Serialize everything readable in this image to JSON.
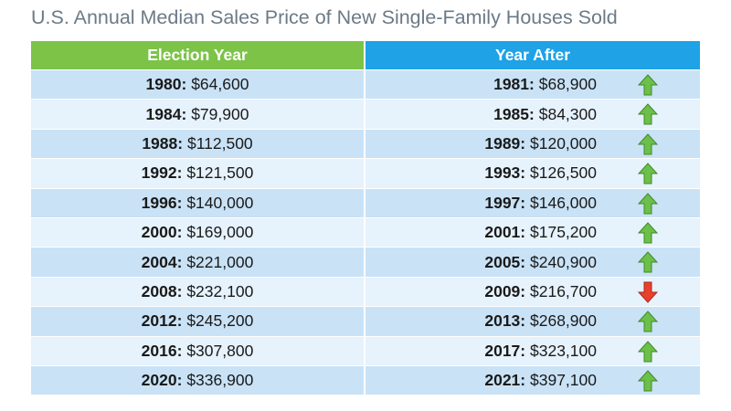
{
  "title": "U.S. Annual Median Sales Price of New Single-Family Houses Sold",
  "headers": {
    "left": "Election Year",
    "right": "Year After"
  },
  "colors": {
    "up": "#6cc04a",
    "down": "#e8412c",
    "header_left": "#7cc348",
    "header_right": "#1fa2e6"
  },
  "chart_data": {
    "type": "table",
    "title": "U.S. Annual Median Sales Price of New Single-Family Houses Sold",
    "columns": [
      "Election Year",
      "Year After"
    ],
    "rows": [
      {
        "election_year": "1980",
        "election_price": "$64,600",
        "after_year": "1981",
        "after_price": "$68,900",
        "direction": "up"
      },
      {
        "election_year": "1984",
        "election_price": "$79,900",
        "after_year": "1985",
        "after_price": "$84,300",
        "direction": "up"
      },
      {
        "election_year": "1988",
        "election_price": "$112,500",
        "after_year": "1989",
        "after_price": "$120,000",
        "direction": "up"
      },
      {
        "election_year": "1992",
        "election_price": "$121,500",
        "after_year": "1993",
        "after_price": "$126,500",
        "direction": "up"
      },
      {
        "election_year": "1996",
        "election_price": "$140,000",
        "after_year": "1997",
        "after_price": "$146,000",
        "direction": "up"
      },
      {
        "election_year": "2000",
        "election_price": "$169,000",
        "after_year": "2001",
        "after_price": "$175,200",
        "direction": "up"
      },
      {
        "election_year": "2004",
        "election_price": "$221,000",
        "after_year": "2005",
        "after_price": "$240,900",
        "direction": "up"
      },
      {
        "election_year": "2008",
        "election_price": "$232,100",
        "after_year": "2009",
        "after_price": "$216,700",
        "direction": "down"
      },
      {
        "election_year": "2012",
        "election_price": "$245,200",
        "after_year": "2013",
        "after_price": "$268,900",
        "direction": "up"
      },
      {
        "election_year": "2016",
        "election_price": "$307,800",
        "after_year": "2017",
        "after_price": "$323,100",
        "direction": "up"
      },
      {
        "election_year": "2020",
        "election_price": "$336,900",
        "after_year": "2021",
        "after_price": "$397,100",
        "direction": "up"
      }
    ]
  }
}
